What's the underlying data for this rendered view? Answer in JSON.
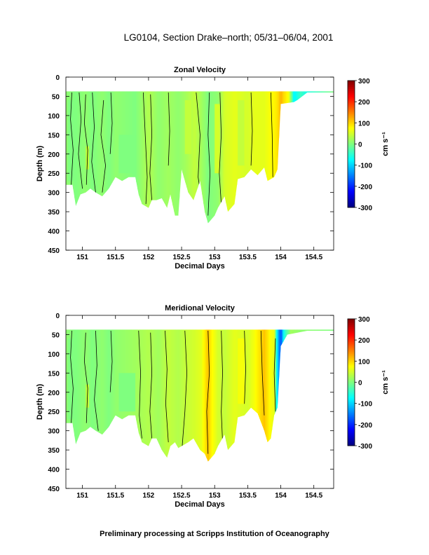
{
  "page": {
    "title": "LG0104, Section Drake–north; 05/31–06/04, 2001",
    "footer": "Preliminary processing at Scripps Institution of Oceanography"
  },
  "colorbar": {
    "label": "cm s⁻¹",
    "ticks": [
      "300",
      "200",
      "100",
      "0",
      "-100",
      "-200",
      "-300"
    ],
    "range": [
      -300,
      300
    ],
    "colors": [
      "#00007f",
      "#0000ff",
      "#007fff",
      "#00ffff",
      "#7fff7f",
      "#ffff00",
      "#ff7f00",
      "#ff0000",
      "#7f0000"
    ]
  },
  "chart_data": [
    {
      "type": "heatmap",
      "title": "Zonal Velocity",
      "xlabel": "Decimal Days",
      "ylabel": "Depth (m)",
      "xlim": [
        150.75,
        154.8
      ],
      "ylim": [
        450,
        0
      ],
      "x_ticks": [
        "151",
        "151.5",
        "152",
        "152.5",
        "153",
        "153.5",
        "154",
        "154.5"
      ],
      "y_ticks": [
        "0",
        "50",
        "100",
        "150",
        "200",
        "250",
        "300",
        "350",
        "400",
        "450"
      ],
      "bottom_depth": [
        [
          150.75,
          280
        ],
        [
          150.85,
          280
        ],
        [
          150.9,
          335
        ],
        [
          150.97,
          305
        ],
        [
          151.05,
          300
        ],
        [
          151.12,
          290
        ],
        [
          151.2,
          300
        ],
        [
          151.3,
          310
        ],
        [
          151.4,
          290
        ],
        [
          151.5,
          260
        ],
        [
          151.6,
          270
        ],
        [
          151.7,
          260
        ],
        [
          151.8,
          260
        ],
        [
          151.85,
          305
        ],
        [
          151.9,
          330
        ],
        [
          152.0,
          340
        ],
        [
          152.05,
          320
        ],
        [
          152.12,
          320
        ],
        [
          152.2,
          315
        ],
        [
          152.28,
          340
        ],
        [
          152.33,
          305
        ],
        [
          152.4,
          360
        ],
        [
          152.45,
          360
        ],
        [
          152.5,
          240
        ],
        [
          152.6,
          300
        ],
        [
          152.68,
          320
        ],
        [
          152.78,
          270
        ],
        [
          152.85,
          350
        ],
        [
          152.9,
          380
        ],
        [
          153.0,
          360
        ],
        [
          153.05,
          340
        ],
        [
          153.15,
          310
        ],
        [
          153.2,
          350
        ],
        [
          153.3,
          330
        ],
        [
          153.35,
          265
        ],
        [
          153.45,
          260
        ],
        [
          153.55,
          240
        ],
        [
          153.65,
          255
        ],
        [
          153.75,
          235
        ],
        [
          153.8,
          270
        ],
        [
          153.9,
          260
        ],
        [
          153.95,
          240
        ],
        [
          154.0,
          70
        ],
        [
          154.2,
          65
        ],
        [
          154.25,
          60
        ],
        [
          154.4,
          40
        ],
        [
          154.8,
          40
        ]
      ],
      "columns": [
        [
          150.75,
          10
        ],
        [
          150.9,
          0
        ],
        [
          151.05,
          10
        ],
        [
          151.15,
          0
        ],
        [
          151.3,
          10
        ],
        [
          151.4,
          0
        ],
        [
          151.5,
          10
        ],
        [
          151.8,
          0
        ],
        [
          152.0,
          30
        ],
        [
          152.15,
          10
        ],
        [
          152.3,
          20
        ],
        [
          152.45,
          10
        ],
        [
          152.55,
          20
        ],
        [
          152.7,
          40
        ],
        [
          152.9,
          0
        ],
        [
          153.05,
          10
        ],
        [
          153.15,
          50
        ],
        [
          153.3,
          60
        ],
        [
          153.5,
          50
        ],
        [
          153.6,
          60
        ],
        [
          153.75,
          60
        ],
        [
          153.9,
          80
        ],
        [
          153.95,
          90
        ],
        [
          154.0,
          120
        ],
        [
          154.05,
          95
        ],
        [
          154.12,
          70
        ],
        [
          154.2,
          -80
        ],
        [
          154.3,
          -40
        ],
        [
          154.38,
          -60
        ],
        [
          154.8,
          0
        ]
      ],
      "patches": [
        [
          150.78,
          60,
          150.88,
          270,
          0
        ],
        [
          151.05,
          180,
          151.1,
          240,
          40
        ],
        [
          151.55,
          150,
          151.8,
          250,
          0
        ],
        [
          152.55,
          60,
          152.65,
          200,
          40
        ],
        [
          153.0,
          70,
          153.08,
          250,
          50
        ],
        [
          153.35,
          60,
          153.45,
          230,
          40
        ]
      ],
      "contours": [
        [
          [
            150.84,
            40
          ],
          [
            150.82,
            110
          ],
          [
            150.86,
            190
          ],
          [
            150.83,
            280
          ]
        ],
        [
          [
            150.95,
            40
          ],
          [
            150.98,
            110
          ],
          [
            150.94,
            200
          ],
          [
            151.0,
            290
          ]
        ],
        [
          [
            151.05,
            45
          ],
          [
            151.03,
            120
          ],
          [
            151.08,
            190
          ],
          [
            151.06,
            280
          ]
        ],
        [
          [
            151.15,
            40
          ],
          [
            151.18,
            130
          ],
          [
            151.14,
            220
          ],
          [
            151.2,
            300
          ]
        ],
        [
          [
            151.32,
            60
          ],
          [
            151.28,
            150
          ],
          [
            151.35,
            230
          ],
          [
            151.3,
            300
          ]
        ],
        [
          [
            151.43,
            40
          ],
          [
            151.45,
            120
          ],
          [
            151.42,
            200
          ]
        ],
        [
          [
            151.92,
            40
          ],
          [
            151.95,
            150
          ],
          [
            151.98,
            260
          ],
          [
            151.96,
            330
          ]
        ],
        [
          [
            152.03,
            45
          ],
          [
            152.05,
            150
          ],
          [
            152.02,
            250
          ],
          [
            152.05,
            320
          ]
        ],
        [
          [
            152.3,
            40
          ],
          [
            152.32,
            140
          ],
          [
            152.3,
            230
          ]
        ],
        [
          [
            152.72,
            40
          ],
          [
            152.78,
            150
          ],
          [
            152.75,
            260
          ],
          [
            152.82,
            340
          ]
        ],
        [
          [
            152.92,
            40
          ],
          [
            152.9,
            150
          ],
          [
            152.93,
            250
          ],
          [
            152.9,
            360
          ]
        ],
        [
          [
            153.08,
            40
          ],
          [
            153.1,
            150
          ],
          [
            153.07,
            250
          ],
          [
            153.1,
            330
          ]
        ],
        [
          [
            153.55,
            40
          ],
          [
            153.57,
            140
          ],
          [
            153.55,
            230
          ]
        ],
        [
          [
            153.85,
            40
          ],
          [
            153.87,
            150
          ],
          [
            153.88,
            260
          ]
        ]
      ]
    },
    {
      "type": "heatmap",
      "title": "Meridional Velocity",
      "xlabel": "Decimal Days",
      "ylabel": "Depth (m)",
      "xlim": [
        150.75,
        154.8
      ],
      "ylim": [
        450,
        0
      ],
      "x_ticks": [
        "151",
        "151.5",
        "152",
        "152.5",
        "153",
        "153.5",
        "154",
        "154.5"
      ],
      "y_ticks": [
        "0",
        "50",
        "100",
        "150",
        "200",
        "250",
        "300",
        "350",
        "400",
        "450"
      ],
      "bottom_depth": [
        [
          150.75,
          280
        ],
        [
          150.85,
          280
        ],
        [
          150.9,
          335
        ],
        [
          150.97,
          305
        ],
        [
          151.05,
          300
        ],
        [
          151.12,
          290
        ],
        [
          151.2,
          300
        ],
        [
          151.3,
          310
        ],
        [
          151.4,
          290
        ],
        [
          151.5,
          260
        ],
        [
          151.6,
          270
        ],
        [
          151.7,
          260
        ],
        [
          151.8,
          260
        ],
        [
          151.85,
          305
        ],
        [
          151.9,
          330
        ],
        [
          152.0,
          340
        ],
        [
          152.05,
          320
        ],
        [
          152.12,
          320
        ],
        [
          152.2,
          350
        ],
        [
          152.28,
          370
        ],
        [
          152.33,
          340
        ],
        [
          152.4,
          330
        ],
        [
          152.45,
          345
        ],
        [
          152.5,
          340
        ],
        [
          152.6,
          330
        ],
        [
          152.68,
          320
        ],
        [
          152.78,
          350
        ],
        [
          152.85,
          360
        ],
        [
          152.9,
          380
        ],
        [
          153.0,
          360
        ],
        [
          153.05,
          340
        ],
        [
          153.15,
          310
        ],
        [
          153.2,
          350
        ],
        [
          153.3,
          330
        ],
        [
          153.35,
          265
        ],
        [
          153.45,
          260
        ],
        [
          153.55,
          240
        ],
        [
          153.65,
          255
        ],
        [
          153.75,
          300
        ],
        [
          153.8,
          330
        ],
        [
          153.85,
          320
        ],
        [
          153.9,
          260
        ],
        [
          153.95,
          240
        ],
        [
          154.0,
          80
        ],
        [
          154.1,
          50
        ],
        [
          154.25,
          45
        ],
        [
          154.4,
          40
        ],
        [
          154.5,
          40
        ],
        [
          154.8,
          40
        ]
      ],
      "columns": [
        [
          150.75,
          10
        ],
        [
          150.9,
          0
        ],
        [
          151.05,
          10
        ],
        [
          151.15,
          0
        ],
        [
          151.3,
          10
        ],
        [
          151.4,
          0
        ],
        [
          151.5,
          10
        ],
        [
          151.8,
          20
        ],
        [
          152.0,
          30
        ],
        [
          152.15,
          20
        ],
        [
          152.3,
          40
        ],
        [
          152.45,
          30
        ],
        [
          152.55,
          40
        ],
        [
          152.7,
          50
        ],
        [
          152.8,
          60
        ],
        [
          152.9,
          110
        ],
        [
          152.95,
          80
        ],
        [
          153.05,
          50
        ],
        [
          153.15,
          40
        ],
        [
          153.3,
          60
        ],
        [
          153.5,
          50
        ],
        [
          153.6,
          70
        ],
        [
          153.75,
          110
        ],
        [
          153.85,
          70
        ],
        [
          153.9,
          60
        ],
        [
          153.95,
          -100
        ],
        [
          154.0,
          -180
        ],
        [
          154.05,
          -60
        ],
        [
          154.15,
          20
        ],
        [
          154.3,
          10
        ],
        [
          154.8,
          0
        ]
      ],
      "patches": [
        [
          150.78,
          60,
          150.88,
          270,
          0
        ],
        [
          151.05,
          180,
          151.1,
          240,
          40
        ],
        [
          151.55,
          150,
          151.8,
          250,
          0
        ],
        [
          153.35,
          60,
          153.45,
          230,
          70
        ]
      ],
      "contours": [
        [
          [
            150.84,
            40
          ],
          [
            150.82,
            110
          ],
          [
            150.86,
            190
          ],
          [
            150.83,
            280
          ]
        ],
        [
          [
            151.05,
            45
          ],
          [
            151.03,
            120
          ],
          [
            151.08,
            190
          ],
          [
            151.06,
            280
          ]
        ],
        [
          [
            151.2,
            40
          ],
          [
            151.22,
            130
          ],
          [
            151.18,
            220
          ],
          [
            151.24,
            300
          ]
        ],
        [
          [
            151.43,
            40
          ],
          [
            151.45,
            120
          ],
          [
            151.42,
            200
          ]
        ],
        [
          [
            151.85,
            40
          ],
          [
            151.88,
            150
          ],
          [
            151.86,
            260
          ],
          [
            151.9,
            320
          ]
        ],
        [
          [
            152.03,
            45
          ],
          [
            152.05,
            150
          ],
          [
            152.02,
            250
          ],
          [
            152.05,
            320
          ]
        ],
        [
          [
            152.25,
            40
          ],
          [
            152.28,
            140
          ],
          [
            152.26,
            230
          ],
          [
            152.3,
            330
          ]
        ],
        [
          [
            152.55,
            40
          ],
          [
            152.58,
            150
          ],
          [
            152.55,
            250
          ],
          [
            152.5,
            360
          ]
        ],
        [
          [
            152.9,
            40
          ],
          [
            152.92,
            150
          ],
          [
            152.88,
            250
          ],
          [
            152.9,
            360
          ]
        ],
        [
          [
            153.1,
            40
          ],
          [
            153.12,
            150
          ],
          [
            153.1,
            250
          ],
          [
            153.12,
            330
          ]
        ],
        [
          [
            153.45,
            40
          ],
          [
            153.47,
            140
          ],
          [
            153.45,
            230
          ]
        ],
        [
          [
            153.7,
            40
          ],
          [
            153.72,
            150
          ],
          [
            153.75,
            260
          ]
        ],
        [
          [
            153.92,
            60
          ],
          [
            153.9,
            150
          ],
          [
            153.92,
            250
          ]
        ]
      ]
    }
  ]
}
